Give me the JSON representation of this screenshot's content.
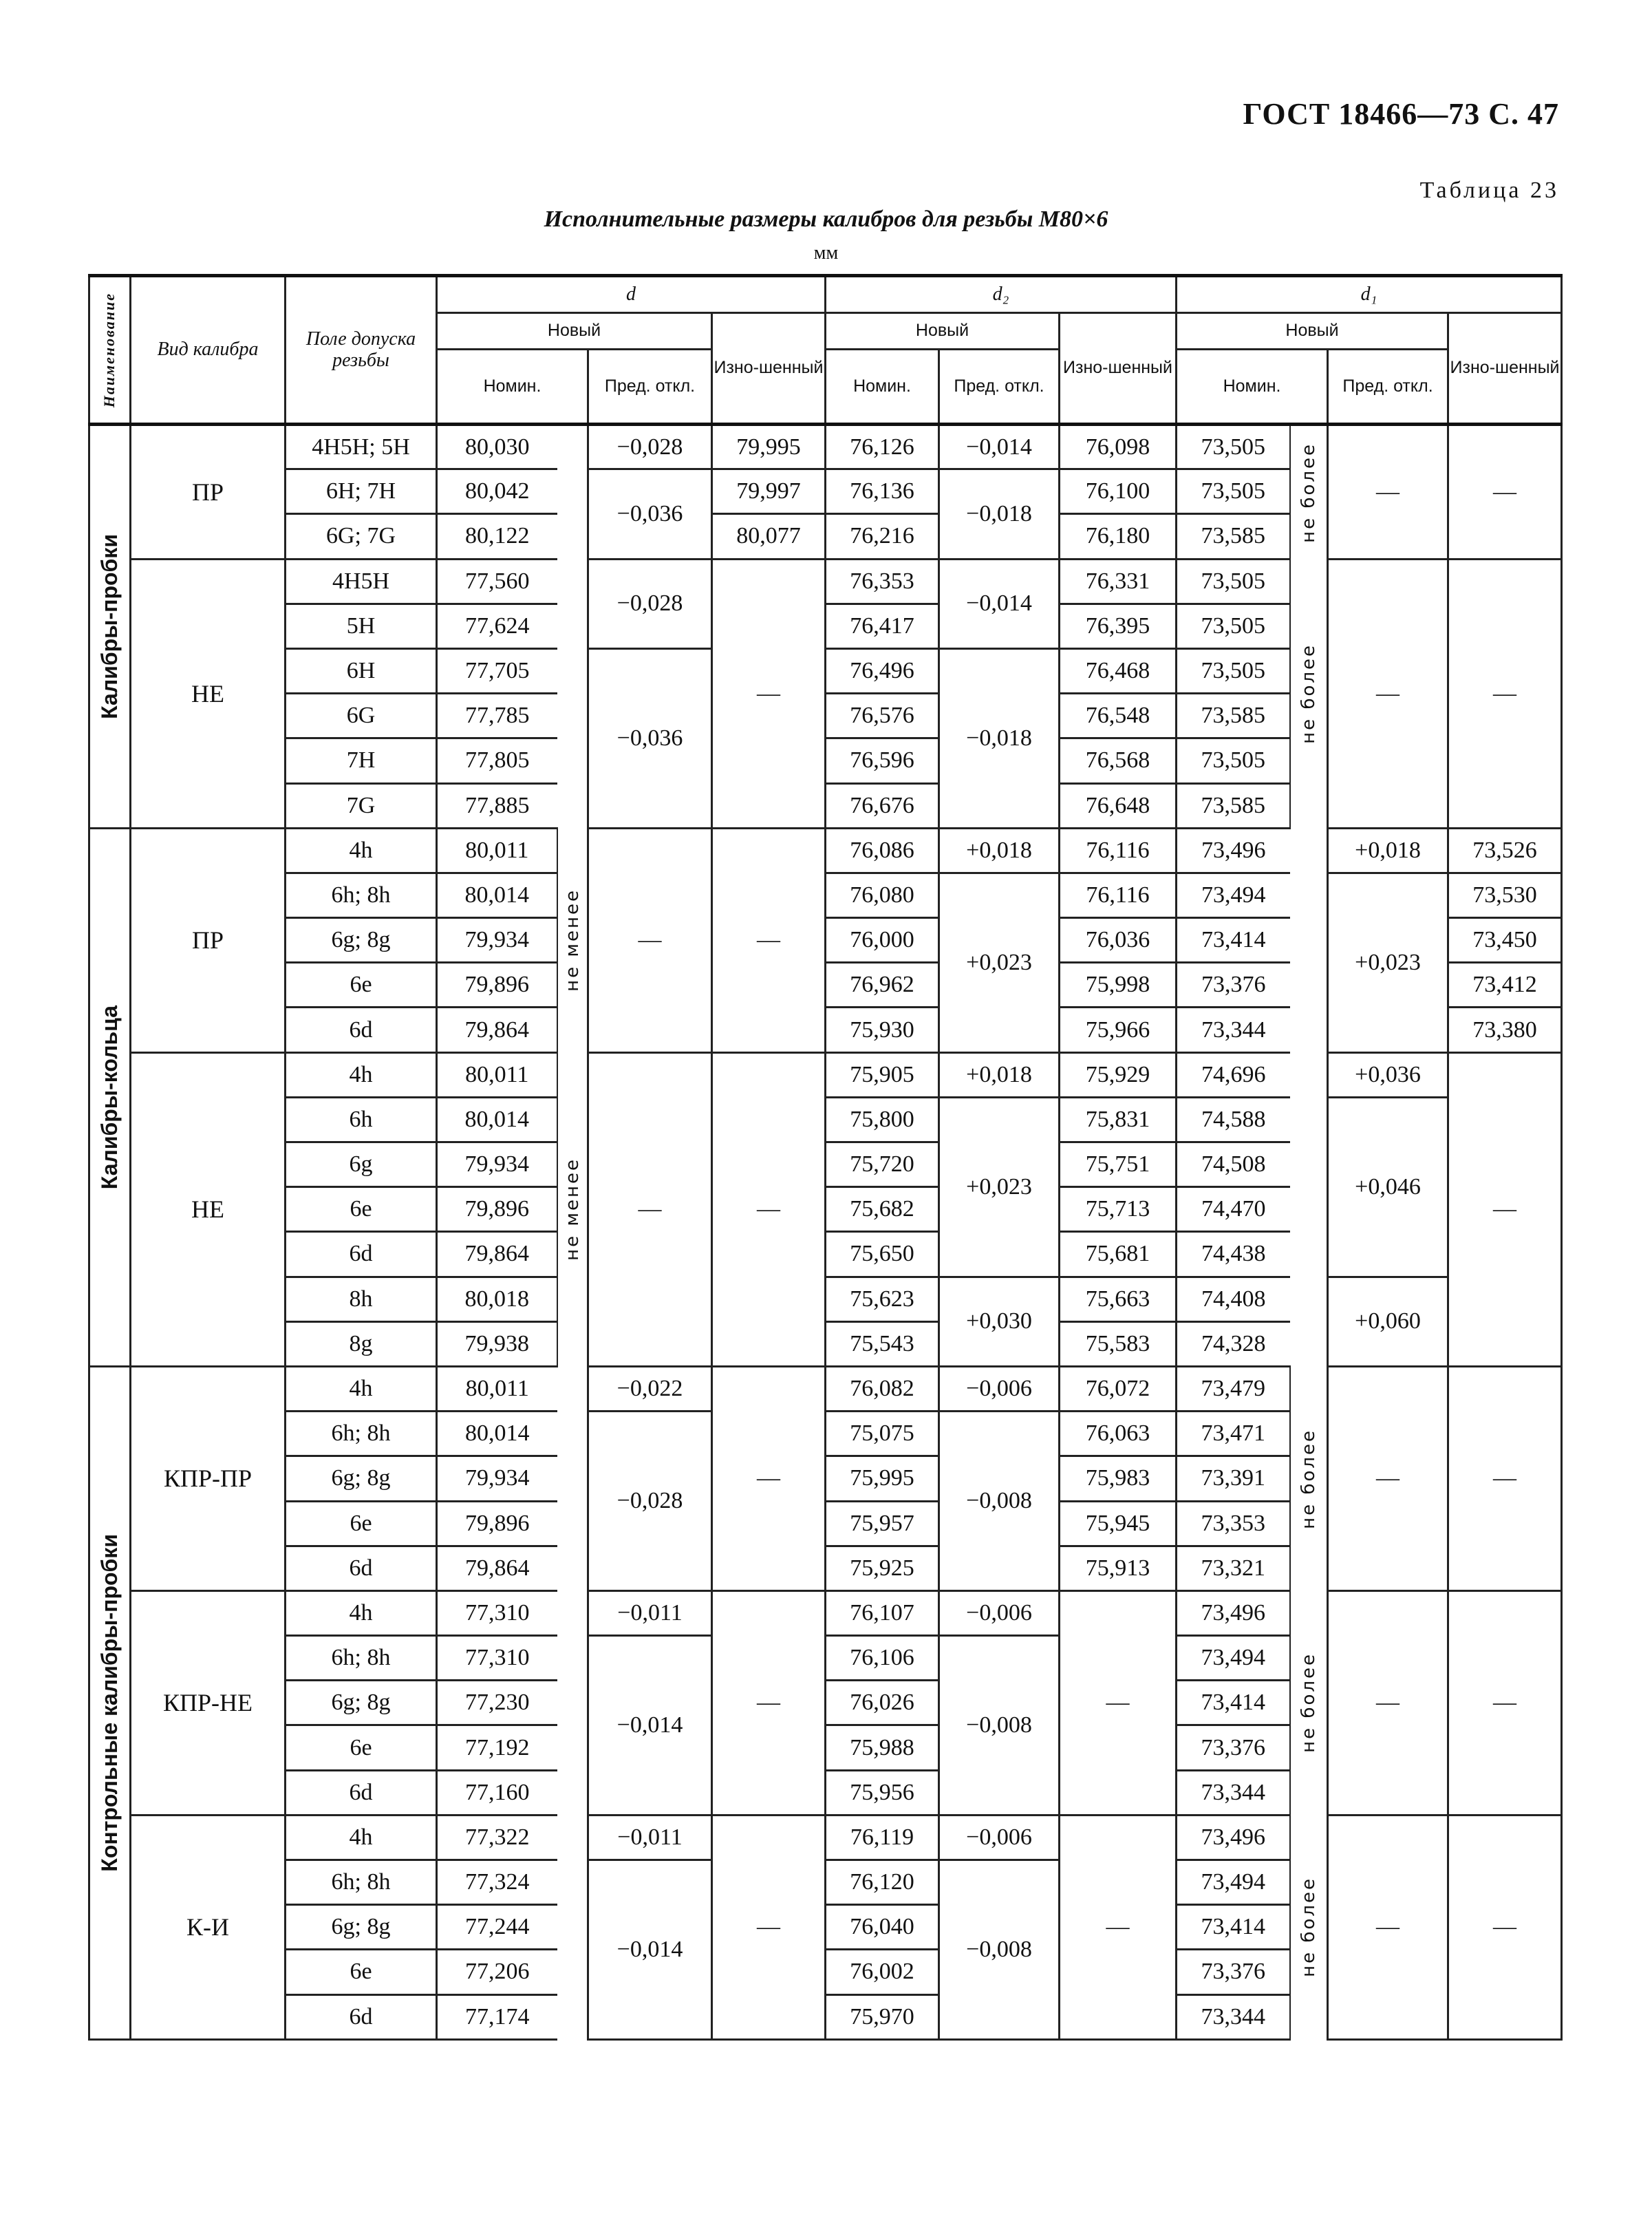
{
  "page_header": "ГОСТ 18466—73 С. 47",
  "table_label": "Таблица 23",
  "title": "Исполнительные размеры калибров для резьбы M80×6",
  "unit": "мм",
  "columns": {
    "name": "Наименование",
    "kind": "Вид калибра",
    "field": "Поле допуска резьбы",
    "d": "d",
    "d2": "d₂",
    "d1": "d₁",
    "new": "Новый",
    "worn": "Изно-шенный",
    "nom": "Номин.",
    "dev": "Пред. откл."
  },
  "sections": [
    {
      "name": "Калибры-пробки",
      "groups": [
        {
          "kind": "ПР",
          "field": [
            "4H5H; 5H",
            "6H; 7H",
            "6G; 7G"
          ],
          "d_nom": [
            "80,030",
            "80,042",
            "80,122"
          ],
          "d_note": [
            {
              "text": "",
              "rows": 3
            }
          ],
          "d_dev": [
            {
              "text": "−0,028",
              "rows": 1
            },
            {
              "text": "−0,036",
              "rows": 2
            }
          ],
          "d_worn": [
            "79,995",
            "79,997",
            "80,077"
          ],
          "d2_nom": [
            "76,126",
            "76,136",
            "76,216"
          ],
          "d2_dev": [
            {
              "text": "−0,014",
              "rows": 1
            },
            {
              "text": "−0,018",
              "rows": 2
            }
          ],
          "d2_worn": [
            "76,098",
            "76,100",
            "76,180"
          ],
          "d1_nom": [
            "73,505",
            "73,505",
            "73,585"
          ],
          "d1_note": [
            {
              "text": "не более",
              "rows": 3
            }
          ],
          "d1_dev": [
            {
              "text": "—",
              "rows": 3
            }
          ],
          "d1_worn": [
            {
              "text": "—",
              "rows": 3
            }
          ]
        },
        {
          "kind": "НЕ",
          "field": [
            "4H5H",
            "5H",
            "6H",
            "6G",
            "7H",
            "7G"
          ],
          "d_nom": [
            "77,560",
            "77,624",
            "77,705",
            "77,785",
            "77,805",
            "77,885"
          ],
          "d_note": [
            {
              "text": "",
              "rows": 6
            }
          ],
          "d_dev": [
            {
              "text": "−0,028",
              "rows": 2
            },
            {
              "text": "−0,036",
              "rows": 4
            }
          ],
          "d_worn": [
            {
              "text": "—",
              "rows": 6
            }
          ],
          "d2_nom": [
            "76,353",
            "76,417",
            "76,496",
            "76,576",
            "76,596",
            "76,676"
          ],
          "d2_dev": [
            {
              "text": "−0,014",
              "rows": 2
            },
            {
              "text": "−0,018",
              "rows": 4
            }
          ],
          "d2_worn": [
            "76,331",
            "76,395",
            "76,468",
            "76,548",
            "76,568",
            "76,648"
          ],
          "d1_nom": [
            "73,505",
            "73,505",
            "73,505",
            "73,585",
            "73,505",
            "73,585"
          ],
          "d1_note": [
            {
              "text": "не более",
              "rows": 6
            }
          ],
          "d1_dev": [
            {
              "text": "—",
              "rows": 6
            }
          ],
          "d1_worn": [
            {
              "text": "—",
              "rows": 6
            }
          ]
        }
      ]
    },
    {
      "name": "Калибры-кольца",
      "groups": [
        {
          "kind": "ПР",
          "field": [
            "4h",
            "6h; 8h",
            "6g; 8g",
            "6e",
            "6d"
          ],
          "d_nom": [
            "80,011",
            "80,014",
            "79,934",
            "79,896",
            "79,864"
          ],
          "d_note": [
            {
              "text": "не менее",
              "rows": 5
            }
          ],
          "d_dev": [
            {
              "text": "—",
              "rows": 5
            }
          ],
          "d_worn": [
            {
              "text": "—",
              "rows": 5
            }
          ],
          "d2_nom": [
            "76,086",
            "76,080",
            "76,000",
            "76,962",
            "75,930"
          ],
          "d2_dev": [
            {
              "text": "+0,018",
              "rows": 1
            },
            {
              "text": "+0,023",
              "rows": 4
            }
          ],
          "d2_worn": [
            "76,116",
            "76,116",
            "76,036",
            "75,998",
            "75,966"
          ],
          "d1_nom": [
            "73,496",
            "73,494",
            "73,414",
            "73,376",
            "73,344"
          ],
          "d1_note": [
            {
              "text": "",
              "rows": 5
            }
          ],
          "d1_dev": [
            {
              "text": "+0,018",
              "rows": 1
            },
            {
              "text": "+0,023",
              "rows": 4
            }
          ],
          "d1_worn": [
            "73,526",
            "73,530",
            "73,450",
            "73,412",
            "73,380"
          ]
        },
        {
          "kind": "НЕ",
          "field": [
            "4h",
            "6h",
            "6g",
            "6e",
            "6d",
            "8h",
            "8g"
          ],
          "d_nom": [
            "80,011",
            "80,014",
            "79,934",
            "79,896",
            "79,864",
            "80,018",
            "79,938"
          ],
          "d_note": [
            {
              "text": "не менее",
              "rows": 7
            }
          ],
          "d_dev": [
            {
              "text": "—",
              "rows": 7
            }
          ],
          "d_worn": [
            {
              "text": "—",
              "rows": 7
            }
          ],
          "d2_nom": [
            "75,905",
            "75,800",
            "75,720",
            "75,682",
            "75,650",
            "75,623",
            "75,543"
          ],
          "d2_dev": [
            {
              "text": "+0,018",
              "rows": 1
            },
            {
              "text": "+0,023",
              "rows": 4
            },
            {
              "text": "+0,030",
              "rows": 2
            }
          ],
          "d2_worn": [
            "75,929",
            "75,831",
            "75,751",
            "75,713",
            "75,681",
            "75,663",
            "75,583"
          ],
          "d1_nom": [
            "74,696",
            "74,588",
            "74,508",
            "74,470",
            "74,438",
            "74,408",
            "74,328"
          ],
          "d1_note": [
            {
              "text": "",
              "rows": 7
            }
          ],
          "d1_dev": [
            {
              "text": "+0,036",
              "rows": 1
            },
            {
              "text": "+0,046",
              "rows": 4
            },
            {
              "text": "+0,060",
              "rows": 2
            }
          ],
          "d1_worn": [
            {
              "text": "—",
              "rows": 7
            }
          ]
        }
      ]
    },
    {
      "name": "Контрольные калибры-пробки",
      "groups": [
        {
          "kind": "КПР-ПР",
          "field": [
            "4h",
            "6h; 8h",
            "6g; 8g",
            "6e",
            "6d"
          ],
          "d_nom": [
            "80,011",
            "80,014",
            "79,934",
            "79,896",
            "79,864"
          ],
          "d_note": [
            {
              "text": "",
              "rows": 5
            }
          ],
          "d_dev": [
            {
              "text": "−0,022",
              "rows": 1
            },
            {
              "text": "−0,028",
              "rows": 4
            }
          ],
          "d_worn": [
            {
              "text": "—",
              "rows": 5
            }
          ],
          "d2_nom": [
            "76,082",
            "75,075",
            "75,995",
            "75,957",
            "75,925"
          ],
          "d2_dev": [
            {
              "text": "−0,006",
              "rows": 1
            },
            {
              "text": "−0,008",
              "rows": 4
            }
          ],
          "d2_worn": [
            "76,072",
            "76,063",
            "75,983",
            "75,945",
            "75,913"
          ],
          "d1_nom": [
            "73,479",
            "73,471",
            "73,391",
            "73,353",
            "73,321"
          ],
          "d1_note": [
            {
              "text": "не более",
              "rows": 5
            }
          ],
          "d1_dev": [
            {
              "text": "—",
              "rows": 5
            }
          ],
          "d1_worn": [
            {
              "text": "—",
              "rows": 5
            }
          ]
        },
        {
          "kind": "КПР-НЕ",
          "field": [
            "4h",
            "6h; 8h",
            "6g; 8g",
            "6e",
            "6d"
          ],
          "d_nom": [
            "77,310",
            "77,310",
            "77,230",
            "77,192",
            "77,160"
          ],
          "d_note": [
            {
              "text": "",
              "rows": 5
            }
          ],
          "d_dev": [
            {
              "text": "−0,011",
              "rows": 1
            },
            {
              "text": "−0,014",
              "rows": 4
            }
          ],
          "d_worn": [
            {
              "text": "—",
              "rows": 5
            }
          ],
          "d2_nom": [
            "76,107",
            "76,106",
            "76,026",
            "75,988",
            "75,956"
          ],
          "d2_dev": [
            {
              "text": "−0,006",
              "rows": 1
            },
            {
              "text": "−0,008",
              "rows": 4
            }
          ],
          "d2_worn": [
            {
              "text": "—",
              "rows": 5
            }
          ],
          "d1_nom": [
            "73,496",
            "73,494",
            "73,414",
            "73,376",
            "73,344"
          ],
          "d1_note": [
            {
              "text": "не более",
              "rows": 5
            }
          ],
          "d1_dev": [
            {
              "text": "—",
              "rows": 5
            }
          ],
          "d1_worn": [
            {
              "text": "—",
              "rows": 5
            }
          ]
        },
        {
          "kind": "К-И",
          "field": [
            "4h",
            "6h; 8h",
            "6g; 8g",
            "6e",
            "6d"
          ],
          "d_nom": [
            "77,322",
            "77,324",
            "77,244",
            "77,206",
            "77,174"
          ],
          "d_note": [
            {
              "text": "",
              "rows": 5
            }
          ],
          "d_dev": [
            {
              "text": "−0,011",
              "rows": 1
            },
            {
              "text": "−0,014",
              "rows": 4
            }
          ],
          "d_worn": [
            {
              "text": "—",
              "rows": 5
            }
          ],
          "d2_nom": [
            "76,119",
            "76,120",
            "76,040",
            "76,002",
            "75,970"
          ],
          "d2_dev": [
            {
              "text": "−0,006",
              "rows": 1
            },
            {
              "text": "−0,008",
              "rows": 4
            }
          ],
          "d2_worn": [
            {
              "text": "—",
              "rows": 5
            }
          ],
          "d1_nom": [
            "73,496",
            "73,494",
            "73,414",
            "73,376",
            "73,344"
          ],
          "d1_note": [
            {
              "text": "не более",
              "rows": 5
            }
          ],
          "d1_dev": [
            {
              "text": "—",
              "rows": 5
            }
          ],
          "d1_worn": [
            {
              "text": "—",
              "rows": 5
            }
          ]
        }
      ]
    }
  ]
}
